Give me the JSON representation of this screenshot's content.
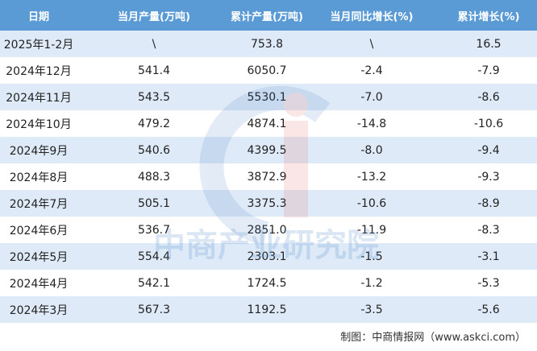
{
  "table": {
    "header": [
      "日期",
      "当月产量(万吨)",
      "累计产量(万吨)",
      "当月同比增长(%)",
      "累计增长(%)"
    ],
    "rows": [
      [
        "2025年1-2月",
        "\\",
        "753.8",
        "\\",
        "16.5"
      ],
      [
        "2024年12月",
        "541.4",
        "6050.7",
        "-2.4",
        "-7.9"
      ],
      [
        "2024年11月",
        "543.5",
        "5530.1",
        "-7.0",
        "-8.6"
      ],
      [
        "2024年10月",
        "479.2",
        "4874.1",
        "-14.8",
        "-10.6"
      ],
      [
        "2024年9月",
        "540.6",
        "4399.5",
        "-8.0",
        "-9.4"
      ],
      [
        "2024年8月",
        "488.3",
        "3872.9",
        "-13.2",
        "-9.3"
      ],
      [
        "2024年7月",
        "505.1",
        "3375.3",
        "-10.6",
        "-8.9"
      ],
      [
        "2024年6月",
        "536.7",
        "2851.0",
        "-11.9",
        "-8.3"
      ],
      [
        "2024年5月",
        "554.4",
        "2303.1",
        "-1.5",
        "-3.1"
      ],
      [
        "2024年4月",
        "542.1",
        "1724.5",
        "-1.2",
        "-5.3"
      ],
      [
        "2024年3月",
        "567.3",
        "1192.5",
        "-3.5",
        "-5.6"
      ]
    ]
  },
  "watermark": "中商产业研究院",
  "footer": "制图：中商情报网（www.askci.com）"
}
